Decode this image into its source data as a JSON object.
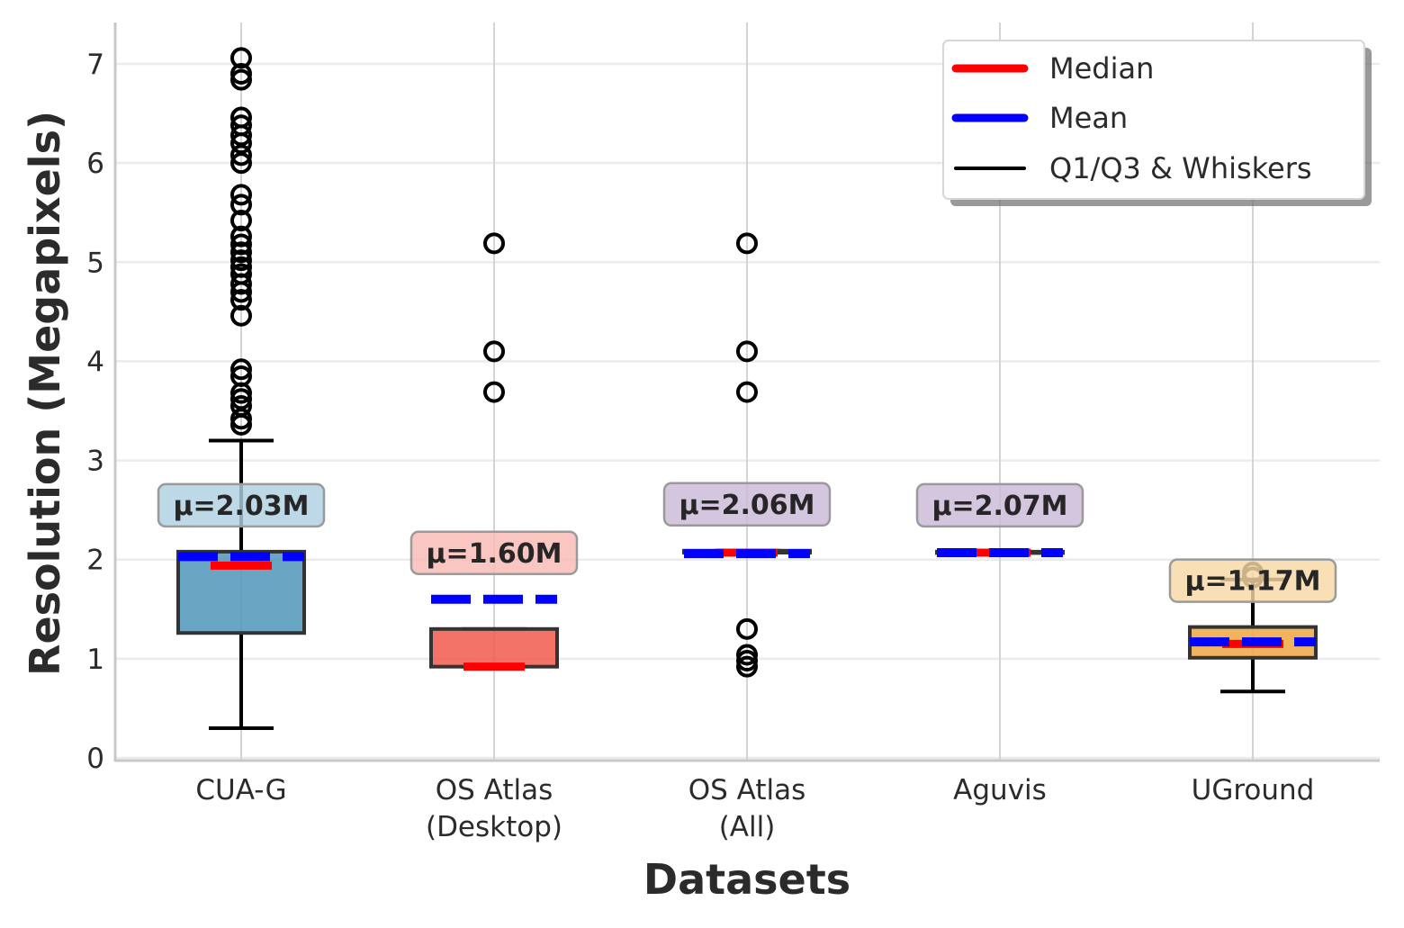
{
  "chart_data": {
    "type": "box",
    "xlabel": "Datasets",
    "ylabel": "Resolution (Megapixels)",
    "ylim": [
      0,
      7.4
    ],
    "yticks": [
      0,
      1,
      2,
      3,
      4,
      5,
      6,
      7
    ],
    "grid": true,
    "legend_position": "top-right",
    "legend": [
      {
        "key": "median",
        "label": "Median",
        "color": "#ff0000"
      },
      {
        "key": "mean",
        "label": "Mean",
        "color": "#0000ff"
      },
      {
        "key": "whiskers",
        "label": "Q1/Q3 & Whiskers",
        "color": "#000000"
      }
    ],
    "series": [
      {
        "name": "CUA-G",
        "label_lines": [
          "CUA-G"
        ],
        "color": "#4e96b8",
        "label_bg": "#aed0e0",
        "q1": 1.26,
        "median": 1.94,
        "q3": 2.08,
        "whisker_low": 0.3,
        "whisker_high": 3.2,
        "mean": 2.03,
        "mean_label": "μ=2.03M",
        "outliers": [
          3.36,
          3.42,
          3.55,
          3.62,
          3.68,
          3.85,
          3.92,
          4.46,
          4.62,
          4.7,
          4.78,
          4.88,
          4.95,
          5.02,
          5.1,
          5.18,
          5.26,
          5.42,
          5.58,
          5.68,
          6.0,
          6.08,
          6.2,
          6.28,
          6.38,
          6.46,
          6.84,
          6.9,
          7.06
        ]
      },
      {
        "name": "OS Atlas (Desktop)",
        "label_lines": [
          "OS Atlas",
          "(Desktop)"
        ],
        "color": "#f25a4f",
        "label_bg": "#f9b9b4",
        "q1": 0.92,
        "median": 0.92,
        "q3": 1.3,
        "whisker_low": 0.92,
        "whisker_high": 1.3,
        "mean": 1.6,
        "mean_label": "μ=1.60M",
        "outliers": [
          3.69,
          4.1,
          5.19
        ]
      },
      {
        "name": "OS Atlas (All)",
        "label_lines": [
          "OS Atlas",
          "(All)"
        ],
        "color": "#8f72ad",
        "label_bg": "#c9b9d7",
        "q1": 2.07,
        "median": 2.07,
        "q3": 2.09,
        "whisker_low": 2.07,
        "whisker_high": 2.09,
        "mean": 2.06,
        "mean_label": "μ=2.06M",
        "outliers": [
          0.92,
          0.98,
          1.04,
          1.3,
          3.69,
          4.1,
          5.19
        ]
      },
      {
        "name": "Aguvis",
        "label_lines": [
          "Aguvis"
        ],
        "color": "#8f72ad",
        "label_bg": "#c9b9d7",
        "q1": 2.07,
        "median": 2.07,
        "q3": 2.08,
        "whisker_low": 2.07,
        "whisker_high": 2.08,
        "mean": 2.07,
        "mean_label": "μ=2.07M",
        "outliers": []
      },
      {
        "name": "UGround",
        "label_lines": [
          "UGround"
        ],
        "color": "#f0a643",
        "label_bg": "#f8d8a6",
        "q1": 1.01,
        "median": 1.15,
        "q3": 1.32,
        "whisker_low": 0.67,
        "whisker_high": 1.8,
        "mean": 1.17,
        "mean_label": "μ=1.17M",
        "outliers": [
          1.82,
          1.87
        ]
      }
    ]
  }
}
